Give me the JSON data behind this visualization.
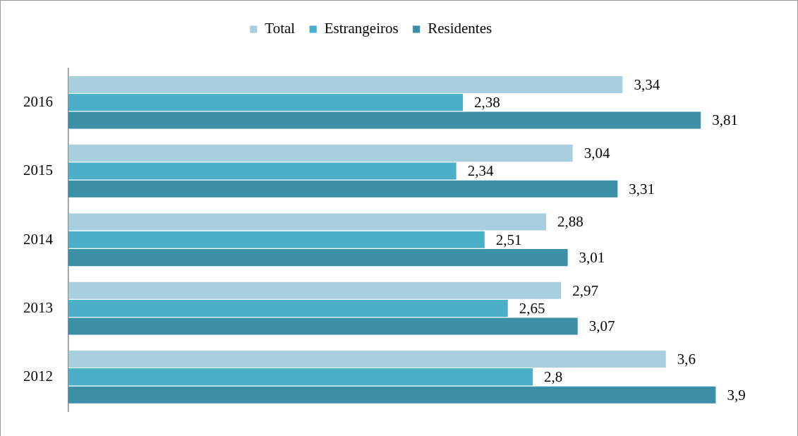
{
  "chart_data": {
    "type": "bar",
    "orientation": "horizontal",
    "categories": [
      "2016",
      "2015",
      "2014",
      "2013",
      "2012"
    ],
    "series": [
      {
        "name": "Total",
        "color": "#a8cfdd",
        "values": [
          3.34,
          3.04,
          2.88,
          2.97,
          3.6
        ],
        "value_labels": [
          "3,34",
          "3,04",
          "2,88",
          "2,97",
          "3,6"
        ]
      },
      {
        "name": "Estrangeiros",
        "color": "#4bafca",
        "values": [
          2.38,
          2.34,
          2.51,
          2.65,
          2.8
        ],
        "value_labels": [
          "2,38",
          "2,34",
          "2,51",
          "2,65",
          "2,8"
        ]
      },
      {
        "name": "Residentes",
        "color": "#3b8fa6",
        "values": [
          3.81,
          3.31,
          3.01,
          3.07,
          3.9
        ],
        "value_labels": [
          "3,81",
          "3,31",
          "3,01",
          "3,07",
          "3,9"
        ]
      }
    ],
    "tick_labels": "y",
    "legend": "top"
  }
}
